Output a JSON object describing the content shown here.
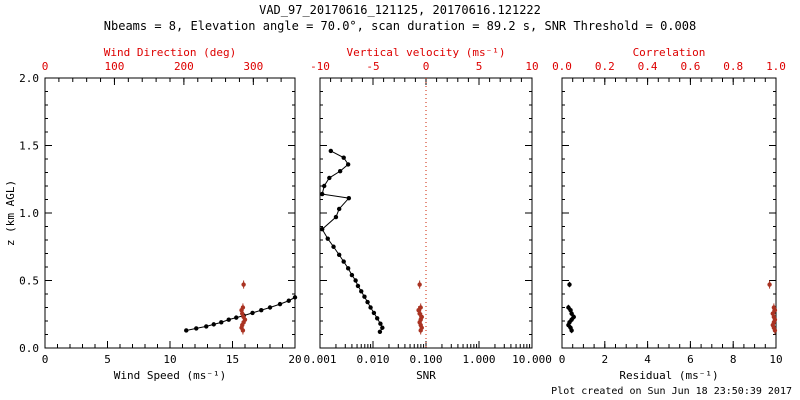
{
  "header": {
    "title": "VAD_97_20170616_121125, 20170616.121222",
    "subtitle": "Nbeams = 8, Elevation angle = 70.0°, scan duration = 89.2 s, SNR Threshold = 0.008"
  },
  "footer": {
    "credit": "Plot created on Sun Jun 18 23:50:39 2017"
  },
  "chart_data": {
    "type": "scatter",
    "layout": "three-panel vertical profile, shared y axis, box frames, inward ticks, no grid, no legend",
    "ylabel": "z (km AGL)",
    "ylim": [
      0,
      2
    ],
    "yticks": [
      0,
      0.5,
      1,
      1.5,
      2
    ],
    "ytick_labels": [
      "0.0",
      "0.5",
      "1.0",
      "1.5",
      "2.0"
    ],
    "panels": [
      {
        "bottom_axis": {
          "label": "Wind Speed (ms⁻¹)",
          "lim": [
            0,
            20
          ],
          "scale": "linear",
          "ticks": [
            0,
            5,
            10,
            15,
            20
          ],
          "tick_labels": [
            "0",
            "5",
            "10",
            "15",
            "20"
          ],
          "minor_step": 1,
          "color": "#000000"
        },
        "top_axis": {
          "label": "Wind Direction (deg)",
          "lim": [
            0,
            360
          ],
          "scale": "linear",
          "ticks": [
            0,
            100,
            200,
            300
          ],
          "tick_labels": [
            "0",
            "100",
            "200",
            "300"
          ],
          "minor_step": 20,
          "color": "#dd0000"
        },
        "series": [
          {
            "name": "wind-speed",
            "axis": "bottom",
            "color": "#000000",
            "line": true,
            "points": [
              [
                11.3,
                0.13
              ],
              [
                12.1,
                0.145
              ],
              [
                12.9,
                0.16
              ],
              [
                13.5,
                0.175
              ],
              [
                14.1,
                0.19
              ],
              [
                14.7,
                0.21
              ],
              [
                15.3,
                0.225
              ],
              [
                15.9,
                0.24
              ],
              [
                16.6,
                0.26
              ],
              [
                17.3,
                0.28
              ],
              [
                18.0,
                0.3
              ],
              [
                18.8,
                0.325
              ],
              [
                19.5,
                0.35
              ],
              [
                20.0,
                0.375
              ]
            ]
          },
          {
            "name": "wind-direction",
            "axis": "top",
            "color": "#aa3322",
            "line": false,
            "ybar": 0.03,
            "points": [
              [
                286,
                0.47
              ],
              [
                285,
                0.3
              ],
              [
                283,
                0.28
              ],
              [
                284,
                0.255
              ],
              [
                286,
                0.23
              ],
              [
                288,
                0.21
              ],
              [
                286,
                0.19
              ],
              [
                284,
                0.17
              ],
              [
                283,
                0.15
              ],
              [
                285,
                0.13
              ]
            ]
          }
        ]
      },
      {
        "bottom_axis": {
          "label": "SNR",
          "lim": [
            0.001,
            10
          ],
          "scale": "log",
          "ticks": [
            0.001,
            0.01,
            0.1,
            1,
            10
          ],
          "tick_labels": [
            "0.001",
            "0.010",
            "0.100",
            "1.000",
            "10.000"
          ],
          "color": "#000000"
        },
        "top_axis": {
          "label": "Vertical velocity (ms⁻¹)",
          "lim": [
            -10,
            10
          ],
          "scale": "linear",
          "ticks": [
            -10,
            -5,
            0,
            5,
            10
          ],
          "tick_labels": [
            "-10",
            "-5",
            "0",
            "5",
            "10"
          ],
          "minor_step": 1,
          "color": "#dd0000"
        },
        "refline": {
          "axis": "top",
          "value": 0,
          "color": "#cc2200",
          "style": "dotted"
        },
        "series": [
          {
            "name": "snr-profile",
            "axis": "bottom",
            "color": "#000000",
            "line": true,
            "points": [
              [
                0.0016,
                1.46
              ],
              [
                0.0028,
                1.41
              ],
              [
                0.0034,
                1.36
              ],
              [
                0.0024,
                1.31
              ],
              [
                0.0015,
                1.26
              ],
              [
                0.0012,
                1.2
              ],
              [
                0.0011,
                1.14
              ],
              [
                0.0035,
                1.11
              ],
              [
                0.0023,
                1.03
              ],
              [
                0.002,
                0.97
              ],
              [
                0.0011,
                0.88
              ],
              [
                0.0014,
                0.81
              ],
              [
                0.0018,
                0.75
              ],
              [
                0.0023,
                0.69
              ],
              [
                0.0028,
                0.64
              ],
              [
                0.0034,
                0.59
              ],
              [
                0.004,
                0.54
              ],
              [
                0.0047,
                0.5
              ],
              [
                0.0052,
                0.46
              ],
              [
                0.006,
                0.42
              ],
              [
                0.0069,
                0.38
              ],
              [
                0.0079,
                0.34
              ],
              [
                0.009,
                0.3
              ],
              [
                0.0104,
                0.26
              ],
              [
                0.012,
                0.22
              ],
              [
                0.0138,
                0.18
              ],
              [
                0.015,
                0.15
              ],
              [
                0.0135,
                0.12
              ]
            ]
          },
          {
            "name": "vertical-velocity",
            "axis": "top",
            "color": "#aa3322",
            "line": false,
            "ybar": 0.03,
            "points": [
              [
                -0.6,
                0.47
              ],
              [
                -0.5,
                0.3
              ],
              [
                -0.7,
                0.28
              ],
              [
                -0.6,
                0.255
              ],
              [
                -0.4,
                0.23
              ],
              [
                -0.5,
                0.21
              ],
              [
                -0.6,
                0.19
              ],
              [
                -0.5,
                0.17
              ],
              [
                -0.4,
                0.15
              ],
              [
                -0.5,
                0.13
              ]
            ]
          }
        ]
      },
      {
        "bottom_axis": {
          "label": "Residual (ms⁻¹)",
          "lim": [
            0,
            10
          ],
          "scale": "linear",
          "ticks": [
            0,
            2,
            4,
            6,
            8,
            10
          ],
          "tick_labels": [
            "0",
            "2",
            "4",
            "6",
            "8",
            "10"
          ],
          "minor_step": 0.5,
          "color": "#000000"
        },
        "top_axis": {
          "label": "Correlation",
          "lim": [
            0,
            1
          ],
          "scale": "linear",
          "ticks": [
            0,
            0.2,
            0.4,
            0.6,
            0.8,
            1
          ],
          "tick_labels": [
            "0.0",
            "0.2",
            "0.4",
            "0.6",
            "0.8",
            "1.0"
          ],
          "minor_step": 0.05,
          "color": "#dd0000"
        },
        "series": [
          {
            "name": "residual",
            "axis": "bottom",
            "color": "#000000",
            "line": false,
            "ybar": 0.02,
            "points": [
              [
                0.35,
                0.47
              ],
              [
                0.3,
                0.3
              ],
              [
                0.4,
                0.28
              ],
              [
                0.45,
                0.255
              ],
              [
                0.55,
                0.23
              ],
              [
                0.45,
                0.21
              ],
              [
                0.35,
                0.19
              ],
              [
                0.3,
                0.17
              ],
              [
                0.4,
                0.15
              ],
              [
                0.45,
                0.13
              ]
            ]
          },
          {
            "name": "correlation",
            "axis": "top",
            "color": "#aa3322",
            "line": false,
            "ybar": 0.03,
            "points": [
              [
                0.97,
                0.47
              ],
              [
                0.99,
                0.3
              ],
              [
                0.995,
                0.28
              ],
              [
                0.985,
                0.255
              ],
              [
                0.99,
                0.23
              ],
              [
                0.995,
                0.21
              ],
              [
                0.99,
                0.19
              ],
              [
                0.985,
                0.17
              ],
              [
                0.99,
                0.15
              ],
              [
                0.995,
                0.13
              ]
            ]
          }
        ]
      }
    ]
  }
}
